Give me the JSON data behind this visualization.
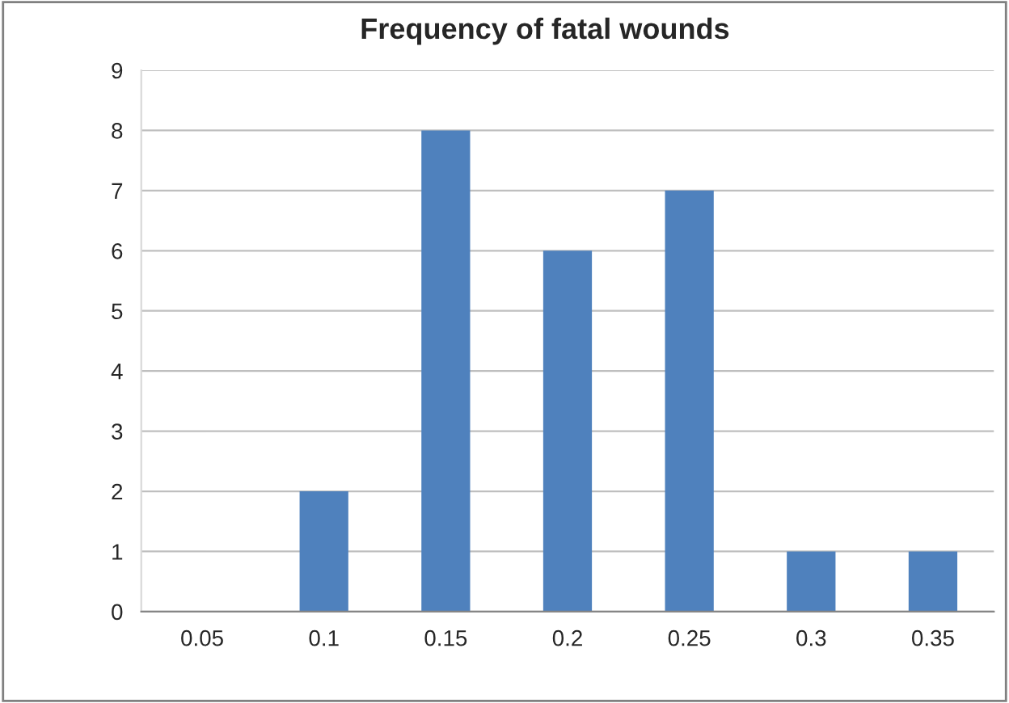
{
  "chart_data": {
    "type": "bar",
    "title": "Frequency of fatal wounds",
    "categories": [
      "0.05",
      "0.1",
      "0.15",
      "0.2",
      "0.25",
      "0.3",
      "0.35"
    ],
    "values": [
      0,
      2,
      8,
      6,
      7,
      1,
      1
    ],
    "color": "#4f81bd",
    "ylim": [
      0,
      9
    ],
    "yticks": [
      0,
      1,
      2,
      3,
      4,
      5,
      6,
      7,
      8,
      9
    ],
    "grid": "y"
  }
}
